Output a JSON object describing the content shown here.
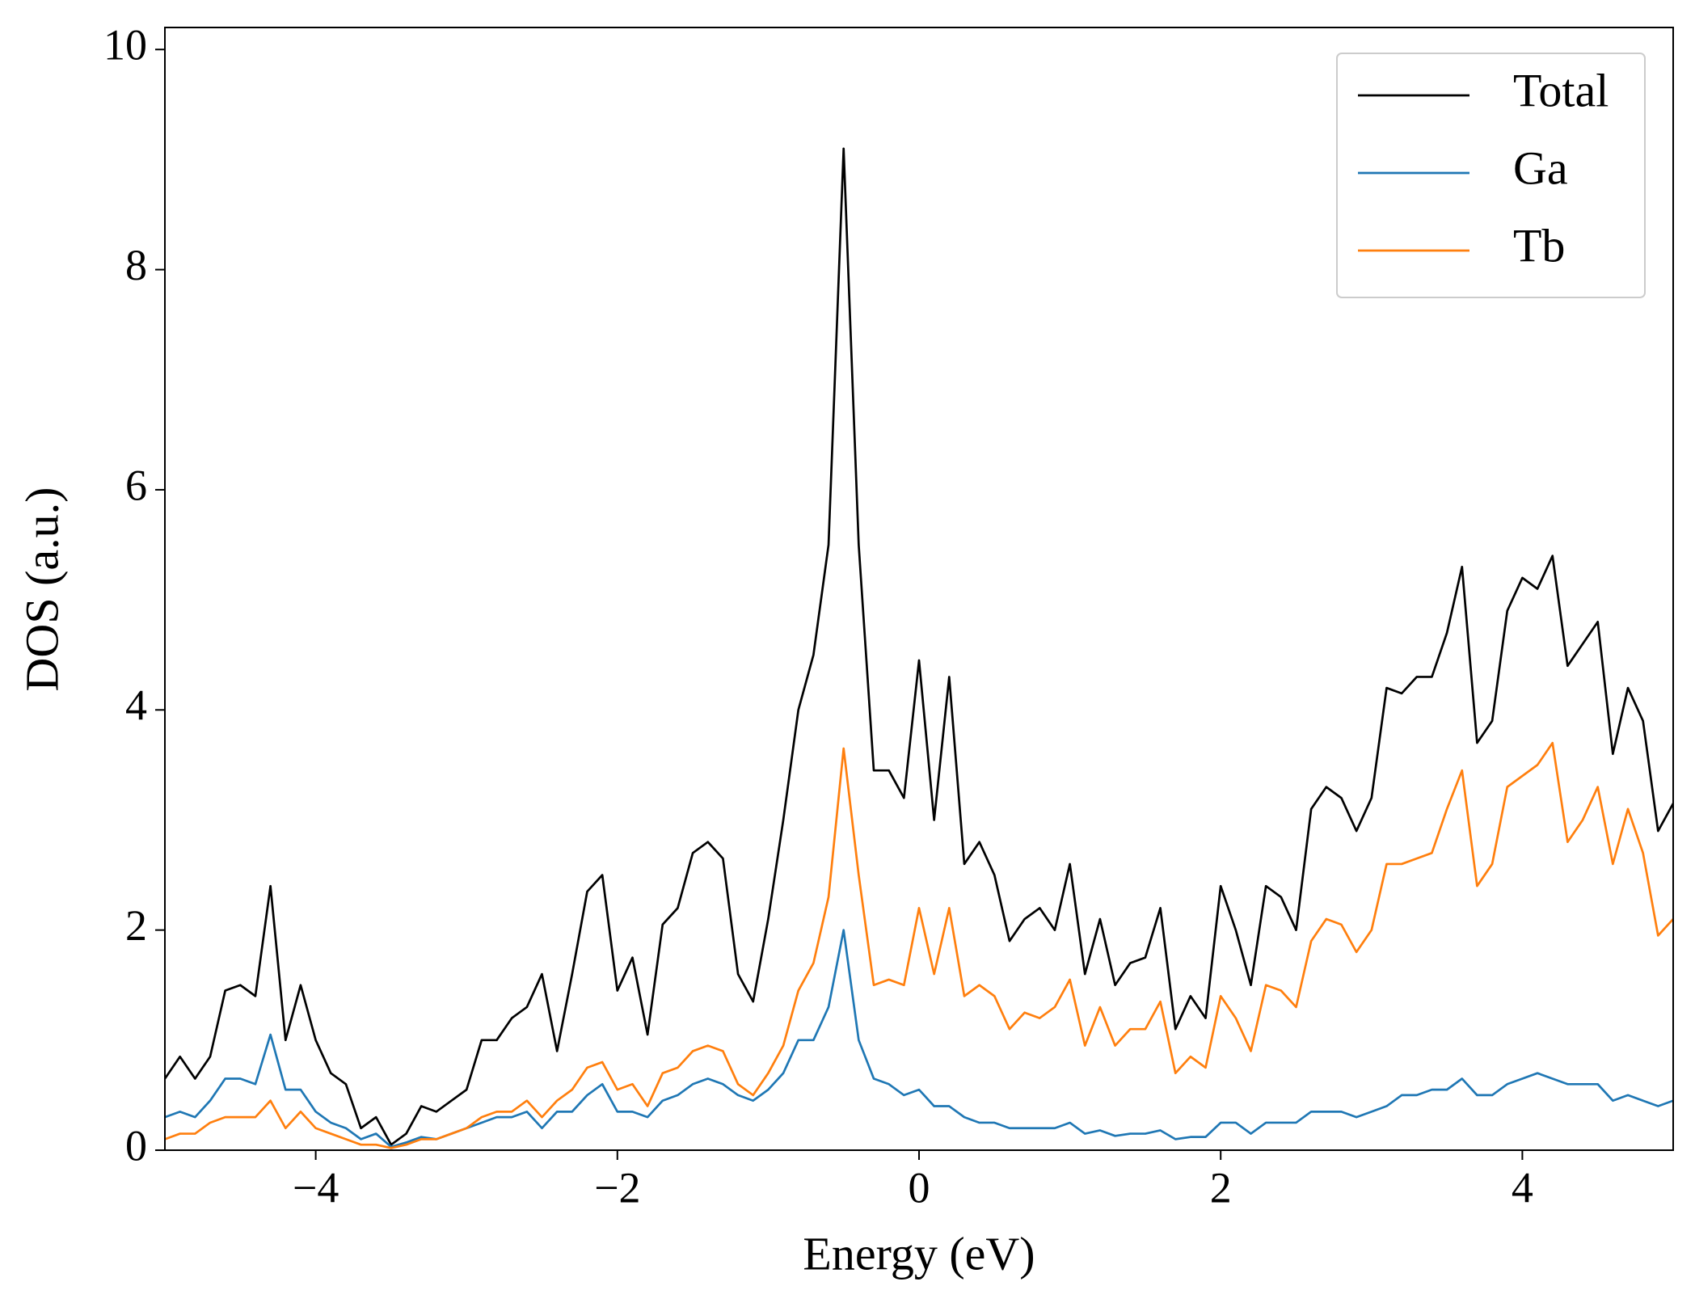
{
  "chart_data": {
    "type": "line",
    "xlabel": "Energy (eV)",
    "ylabel": "DOS (a.u.)",
    "xlim": [
      -5,
      5
    ],
    "ylim": [
      0,
      10.2
    ],
    "xticks": [
      {
        "value": -4,
        "label": "−4"
      },
      {
        "value": -2,
        "label": "−2"
      },
      0,
      2,
      4
    ],
    "yticks": [
      0,
      2,
      4,
      6,
      8,
      10
    ],
    "legend": "upper right",
    "x": [
      -5.0,
      -4.9,
      -4.8,
      -4.7,
      -4.6,
      -4.5,
      -4.4,
      -4.3,
      -4.2,
      -4.1,
      -4.0,
      -3.9,
      -3.8,
      -3.7,
      -3.6,
      -3.5,
      -3.4,
      -3.3,
      -3.2,
      -3.1,
      -3.0,
      -2.9,
      -2.8,
      -2.7,
      -2.6,
      -2.5,
      -2.4,
      -2.3,
      -2.2,
      -2.1,
      -2.0,
      -1.9,
      -1.8,
      -1.7,
      -1.6,
      -1.5,
      -1.4,
      -1.3,
      -1.2,
      -1.1,
      -1.0,
      -0.9,
      -0.8,
      -0.7,
      -0.6,
      -0.5,
      -0.4,
      -0.3,
      -0.2,
      -0.1,
      0.0,
      0.1,
      0.2,
      0.3,
      0.4,
      0.5,
      0.6,
      0.7,
      0.8,
      0.9,
      1.0,
      1.1,
      1.2,
      1.3,
      1.4,
      1.5,
      1.6,
      1.7,
      1.8,
      1.9,
      2.0,
      2.1,
      2.2,
      2.3,
      2.4,
      2.5,
      2.6,
      2.7,
      2.8,
      2.9,
      3.0,
      3.1,
      3.2,
      3.3,
      3.4,
      3.5,
      3.6,
      3.7,
      3.8,
      3.9,
      4.0,
      4.1,
      4.2,
      4.3,
      4.4,
      4.5,
      4.6,
      4.7,
      4.8,
      4.9,
      5.0
    ],
    "series": [
      {
        "name": "Total",
        "color": "#000000",
        "values": [
          0.65,
          0.85,
          0.65,
          0.85,
          1.45,
          1.5,
          1.4,
          2.4,
          1.0,
          1.5,
          1.0,
          0.7,
          0.6,
          0.2,
          0.3,
          0.05,
          0.15,
          0.4,
          0.35,
          0.45,
          0.55,
          1.0,
          1.0,
          1.2,
          1.3,
          1.6,
          0.9,
          1.6,
          2.35,
          2.5,
          1.45,
          1.75,
          1.05,
          2.05,
          2.2,
          2.7,
          2.8,
          2.65,
          1.6,
          1.35,
          2.1,
          3.0,
          4.0,
          4.5,
          5.5,
          9.1,
          5.5,
          3.45,
          3.45,
          3.2,
          4.45,
          3.0,
          4.3,
          2.6,
          2.8,
          2.5,
          1.9,
          2.1,
          2.2,
          2.0,
          2.6,
          1.6,
          2.1,
          1.5,
          1.7,
          1.75,
          2.2,
          1.1,
          1.4,
          1.2,
          2.4,
          2.0,
          1.5,
          2.4,
          2.3,
          2.0,
          3.1,
          3.3,
          3.2,
          2.9,
          3.2,
          4.2,
          4.15,
          4.3,
          4.3,
          4.7,
          5.3,
          3.7,
          3.9,
          4.9,
          5.2,
          5.1,
          5.4,
          4.4,
          4.6,
          4.8,
          3.6,
          4.2,
          3.9,
          2.9,
          3.15
        ]
      },
      {
        "name": "Ga",
        "color": "#1f77b4",
        "values": [
          0.3,
          0.35,
          0.3,
          0.45,
          0.65,
          0.65,
          0.6,
          1.05,
          0.55,
          0.55,
          0.35,
          0.25,
          0.2,
          0.1,
          0.15,
          0.03,
          0.07,
          0.12,
          0.1,
          0.15,
          0.2,
          0.25,
          0.3,
          0.3,
          0.35,
          0.2,
          0.35,
          0.35,
          0.5,
          0.6,
          0.35,
          0.35,
          0.3,
          0.45,
          0.5,
          0.6,
          0.65,
          0.6,
          0.5,
          0.45,
          0.55,
          0.7,
          1.0,
          1.0,
          1.3,
          2.0,
          1.0,
          0.65,
          0.6,
          0.5,
          0.55,
          0.4,
          0.4,
          0.3,
          0.25,
          0.25,
          0.2,
          0.2,
          0.2,
          0.2,
          0.25,
          0.15,
          0.18,
          0.13,
          0.15,
          0.15,
          0.18,
          0.1,
          0.12,
          0.12,
          0.25,
          0.25,
          0.15,
          0.25,
          0.25,
          0.25,
          0.35,
          0.35,
          0.35,
          0.3,
          0.35,
          0.4,
          0.5,
          0.5,
          0.55,
          0.55,
          0.65,
          0.5,
          0.5,
          0.6,
          0.65,
          0.7,
          0.65,
          0.6,
          0.6,
          0.6,
          0.45,
          0.5,
          0.45,
          0.4,
          0.45
        ]
      },
      {
        "name": "Tb",
        "color": "#ff7f0e",
        "values": [
          0.1,
          0.15,
          0.15,
          0.25,
          0.3,
          0.3,
          0.3,
          0.45,
          0.2,
          0.35,
          0.2,
          0.15,
          0.1,
          0.05,
          0.05,
          0.02,
          0.05,
          0.1,
          0.1,
          0.15,
          0.2,
          0.3,
          0.35,
          0.35,
          0.45,
          0.3,
          0.45,
          0.55,
          0.75,
          0.8,
          0.55,
          0.6,
          0.4,
          0.7,
          0.75,
          0.9,
          0.95,
          0.9,
          0.6,
          0.5,
          0.7,
          0.95,
          1.45,
          1.7,
          2.3,
          3.65,
          2.5,
          1.5,
          1.55,
          1.5,
          2.2,
          1.6,
          2.2,
          1.4,
          1.5,
          1.4,
          1.1,
          1.25,
          1.2,
          1.3,
          1.55,
          0.95,
          1.3,
          0.95,
          1.1,
          1.1,
          1.35,
          0.7,
          0.85,
          0.75,
          1.4,
          1.2,
          0.9,
          1.5,
          1.45,
          1.3,
          1.9,
          2.1,
          2.05,
          1.8,
          2.0,
          2.6,
          2.6,
          2.65,
          2.7,
          3.1,
          3.45,
          2.4,
          2.6,
          3.3,
          3.4,
          3.5,
          3.7,
          2.8,
          3.0,
          3.3,
          2.6,
          3.1,
          2.7,
          1.95,
          2.1
        ]
      }
    ]
  }
}
